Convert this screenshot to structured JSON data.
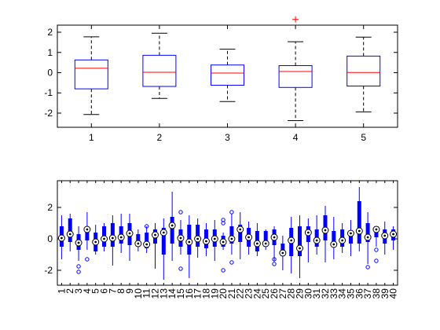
{
  "colors": {
    "background": "#ffffff",
    "axes": "#000000",
    "box": "#0000ff",
    "median": "#ff0000",
    "whisker": "#000000",
    "outlier_top": "#ff0000",
    "outlier_bottom": "#0000ff"
  },
  "chart_data": [
    {
      "type": "boxplot",
      "style": "traditional",
      "title": "",
      "xlabel": "",
      "ylabel": "",
      "ylim": [
        -2.7,
        2.35
      ],
      "yticks": [
        -2,
        -1,
        0,
        1,
        2
      ],
      "grid": false,
      "categories": [
        "1",
        "2",
        "3",
        "4",
        "5"
      ],
      "boxes": [
        {
          "whisker_low": -2.07,
          "q1": -0.8,
          "median": 0.22,
          "q3": 0.63,
          "whisker_high": 1.77,
          "outliers": []
        },
        {
          "whisker_low": -1.27,
          "q1": -0.68,
          "median": 0.02,
          "q3": 0.86,
          "whisker_high": 1.95,
          "outliers": []
        },
        {
          "whisker_low": -1.43,
          "q1": -0.62,
          "median": -0.02,
          "q3": 0.38,
          "whisker_high": 1.16,
          "outliers": []
        },
        {
          "whisker_low": -2.37,
          "q1": -0.73,
          "median": 0.06,
          "q3": 0.35,
          "whisker_high": 1.53,
          "outliers": [
            2.63
          ]
        },
        {
          "whisker_low": -1.94,
          "q1": -0.66,
          "median": 0.01,
          "q3": 0.82,
          "whisker_high": 1.76,
          "outliers": []
        }
      ]
    },
    {
      "type": "boxplot",
      "style": "compact",
      "title": "",
      "xlabel": "",
      "ylabel": "",
      "ylim": [
        -2.95,
        3.7
      ],
      "yticks": [
        -2,
        0,
        2
      ],
      "grid": false,
      "tick_label_rotation": 90,
      "categories": [
        "1",
        "2",
        "3",
        "4",
        "5",
        "6",
        "7",
        "8",
        "9",
        "10",
        "11",
        "12",
        "13",
        "14",
        "15",
        "16",
        "17",
        "18",
        "19",
        "20",
        "21",
        "22",
        "23",
        "24",
        "25",
        "26",
        "27",
        "28",
        "29",
        "30",
        "31",
        "32",
        "33",
        "34",
        "35",
        "36",
        "37",
        "38",
        "39",
        "40"
      ],
      "boxes": [
        {
          "whisker_low": -1.3,
          "q1": -0.5,
          "median": 0.05,
          "q3": 0.8,
          "whisker_high": 1.5,
          "outliers": []
        },
        {
          "whisker_low": -0.8,
          "q1": -0.2,
          "median": 0.3,
          "q3": 1.3,
          "whisker_high": 1.6,
          "outliers": []
        },
        {
          "whisker_low": -1.4,
          "q1": -0.7,
          "median": -0.25,
          "q3": 0.3,
          "whisker_high": 0.8,
          "outliers": [
            -1.75,
            -2.1
          ]
        },
        {
          "whisker_low": -0.7,
          "q1": -0.1,
          "median": 0.6,
          "q3": 0.7,
          "whisker_high": 1.7,
          "outliers": [
            -1.3
          ]
        },
        {
          "whisker_low": -1.0,
          "q1": -0.8,
          "median": -0.2,
          "q3": 0.4,
          "whisker_high": 0.9,
          "outliers": []
        },
        {
          "whisker_low": -0.8,
          "q1": -0.5,
          "median": 0.0,
          "q3": 0.8,
          "whisker_high": 1.0,
          "outliers": []
        },
        {
          "whisker_low": -1.7,
          "q1": -0.5,
          "median": 0.05,
          "q3": 1.0,
          "whisker_high": 1.5,
          "outliers": []
        },
        {
          "whisker_low": -0.9,
          "q1": -0.3,
          "median": 0.1,
          "q3": 0.8,
          "whisker_high": 1.6,
          "outliers": []
        },
        {
          "whisker_low": -1.4,
          "q1": -0.4,
          "median": 0.35,
          "q3": 1.0,
          "whisker_high": 1.6,
          "outliers": []
        },
        {
          "whisker_low": -0.8,
          "q1": -0.5,
          "median": -0.3,
          "q3": 0.3,
          "whisker_high": 0.6,
          "outliers": []
        },
        {
          "whisker_low": -0.9,
          "q1": -0.6,
          "median": -0.35,
          "q3": 0.4,
          "whisker_high": 0.8,
          "outliers": [
            0.8
          ]
        },
        {
          "whisker_low": -1.9,
          "q1": -0.3,
          "median": 0.25,
          "q3": 0.6,
          "whisker_high": 1.0,
          "outliers": []
        },
        {
          "whisker_low": -2.6,
          "q1": -1.0,
          "median": 0.4,
          "q3": 0.7,
          "whisker_high": 1.3,
          "outliers": []
        },
        {
          "whisker_low": -1.4,
          "q1": -0.3,
          "median": 0.85,
          "q3": 1.4,
          "whisker_high": 3.0,
          "outliers": []
        },
        {
          "whisker_low": -1.0,
          "q1": -0.5,
          "median": 0.05,
          "q3": 0.6,
          "whisker_high": 1.2,
          "outliers": [
            1.7,
            -1.9
          ]
        },
        {
          "whisker_low": -2.5,
          "q1": -1.0,
          "median": -0.2,
          "q3": 0.9,
          "whisker_high": 1.5,
          "outliers": []
        },
        {
          "whisker_low": -1.2,
          "q1": -0.5,
          "median": 0.0,
          "q3": 0.9,
          "whisker_high": 1.3,
          "outliers": []
        },
        {
          "whisker_low": -1.1,
          "q1": -0.6,
          "median": -0.15,
          "q3": 0.6,
          "whisker_high": 1.0,
          "outliers": []
        },
        {
          "whisker_low": -1.4,
          "q1": -0.5,
          "median": 0.0,
          "q3": 0.6,
          "whisker_high": 1.2,
          "outliers": []
        },
        {
          "whisker_low": -0.7,
          "q1": -0.5,
          "median": -0.2,
          "q3": 0.2,
          "whisker_high": 0.4,
          "outliers": [
            1.0,
            1.2,
            -2.0
          ]
        },
        {
          "whisker_low": -1.0,
          "q1": -0.3,
          "median": 0.0,
          "q3": 0.8,
          "whisker_high": 1.6,
          "outliers": [
            1.7,
            -1.5
          ]
        },
        {
          "whisker_low": -1.3,
          "q1": -0.2,
          "median": 0.6,
          "q3": 0.9,
          "whisker_high": 1.7,
          "outliers": []
        },
        {
          "whisker_low": -1.0,
          "q1": -0.5,
          "median": 0.1,
          "q3": 0.7,
          "whisker_high": 1.1,
          "outliers": []
        },
        {
          "whisker_low": -1.1,
          "q1": -0.8,
          "median": -0.3,
          "q3": 0.5,
          "whisker_high": 1.0,
          "outliers": []
        },
        {
          "whisker_low": -0.7,
          "q1": -0.5,
          "median": -0.3,
          "q3": 0.5,
          "whisker_high": 0.6,
          "outliers": []
        },
        {
          "whisker_low": -1.4,
          "q1": -0.4,
          "median": 0.1,
          "q3": 0.6,
          "whisker_high": 0.8,
          "outliers": [
            -1.3,
            -1.6
          ]
        },
        {
          "whisker_low": -2.0,
          "q1": -1.1,
          "median": -0.9,
          "q3": -0.3,
          "whisker_high": 0.2,
          "outliers": []
        },
        {
          "whisker_low": -2.2,
          "q1": -1.1,
          "median": -0.1,
          "q3": 0.7,
          "whisker_high": 1.4,
          "outliers": []
        },
        {
          "whisker_low": -2.5,
          "q1": -1.1,
          "median": -0.6,
          "q3": 0.8,
          "whisker_high": 1.5,
          "outliers": []
        },
        {
          "whisker_low": -1.5,
          "q1": -0.2,
          "median": 0.4,
          "q3": 0.8,
          "whisker_high": 1.3,
          "outliers": []
        },
        {
          "whisker_low": -1.0,
          "q1": -0.5,
          "median": -0.1,
          "q3": 0.6,
          "whisker_high": 1.5,
          "outliers": []
        },
        {
          "whisker_low": -1.5,
          "q1": -0.1,
          "median": 0.55,
          "q3": 1.5,
          "whisker_high": 2.1,
          "outliers": []
        },
        {
          "whisker_low": -1.3,
          "q1": -0.4,
          "median": -0.35,
          "q3": 0.5,
          "whisker_high": 1.4,
          "outliers": []
        },
        {
          "whisker_low": -0.9,
          "q1": -0.5,
          "median": -0.1,
          "q3": 0.6,
          "whisker_high": 1.0,
          "outliers": []
        },
        {
          "whisker_low": -1.1,
          "q1": -0.3,
          "median": 0.35,
          "q3": 0.5,
          "whisker_high": 1.2,
          "outliers": []
        },
        {
          "whisker_low": -0.8,
          "q1": -0.3,
          "median": 0.5,
          "q3": 2.4,
          "whisker_high": 3.3,
          "outliers": []
        },
        {
          "whisker_low": -1.6,
          "q1": -0.2,
          "median": 0.1,
          "q3": 1.0,
          "whisker_high": 1.7,
          "outliers": [
            -1.8
          ]
        },
        {
          "whisker_low": -0.5,
          "q1": 0.1,
          "median": 0.6,
          "q3": 0.8,
          "whisker_high": 0.8,
          "outliers": [
            -0.7,
            -1.4
          ]
        },
        {
          "whisker_low": -1.0,
          "q1": -0.3,
          "median": 0.2,
          "q3": 0.6,
          "whisker_high": 1.1,
          "outliers": []
        },
        {
          "whisker_low": -0.7,
          "q1": -0.1,
          "median": 0.3,
          "q3": 0.6,
          "whisker_high": 0.8,
          "outliers": []
        }
      ]
    }
  ]
}
